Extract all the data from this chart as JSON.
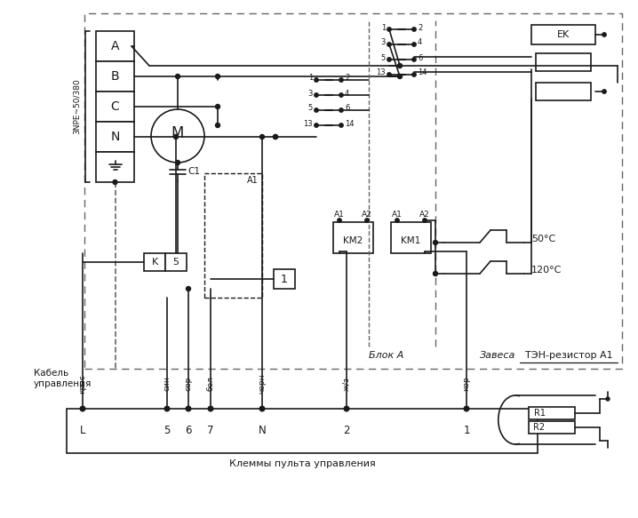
{
  "bg": "#ffffff",
  "lc": "#1a1a1a",
  "figsize": [
    7.18,
    5.83
  ],
  "dpi": 100,
  "phases": [
    "A",
    "B",
    "C",
    "N"
  ],
  "terminals": [
    "L",
    "5",
    "6",
    "7",
    "N",
    "2",
    "1"
  ],
  "term_x": [
    93,
    188,
    212,
    237,
    295,
    390,
    525
  ],
  "color_labels": [
    "крас",
    "син",
    "сер",
    "бел",
    "черн",
    "ж/з",
    "кор"
  ],
  "color_x": [
    93,
    188,
    212,
    237,
    295,
    390,
    525
  ],
  "klemmy": "Клеммы пульта управления",
  "kabel": "Кабель\nуправления",
  "blok_a": "Блок А",
  "zavesa": "Завеса",
  "ten_label": "ТЭН-резистор А1"
}
